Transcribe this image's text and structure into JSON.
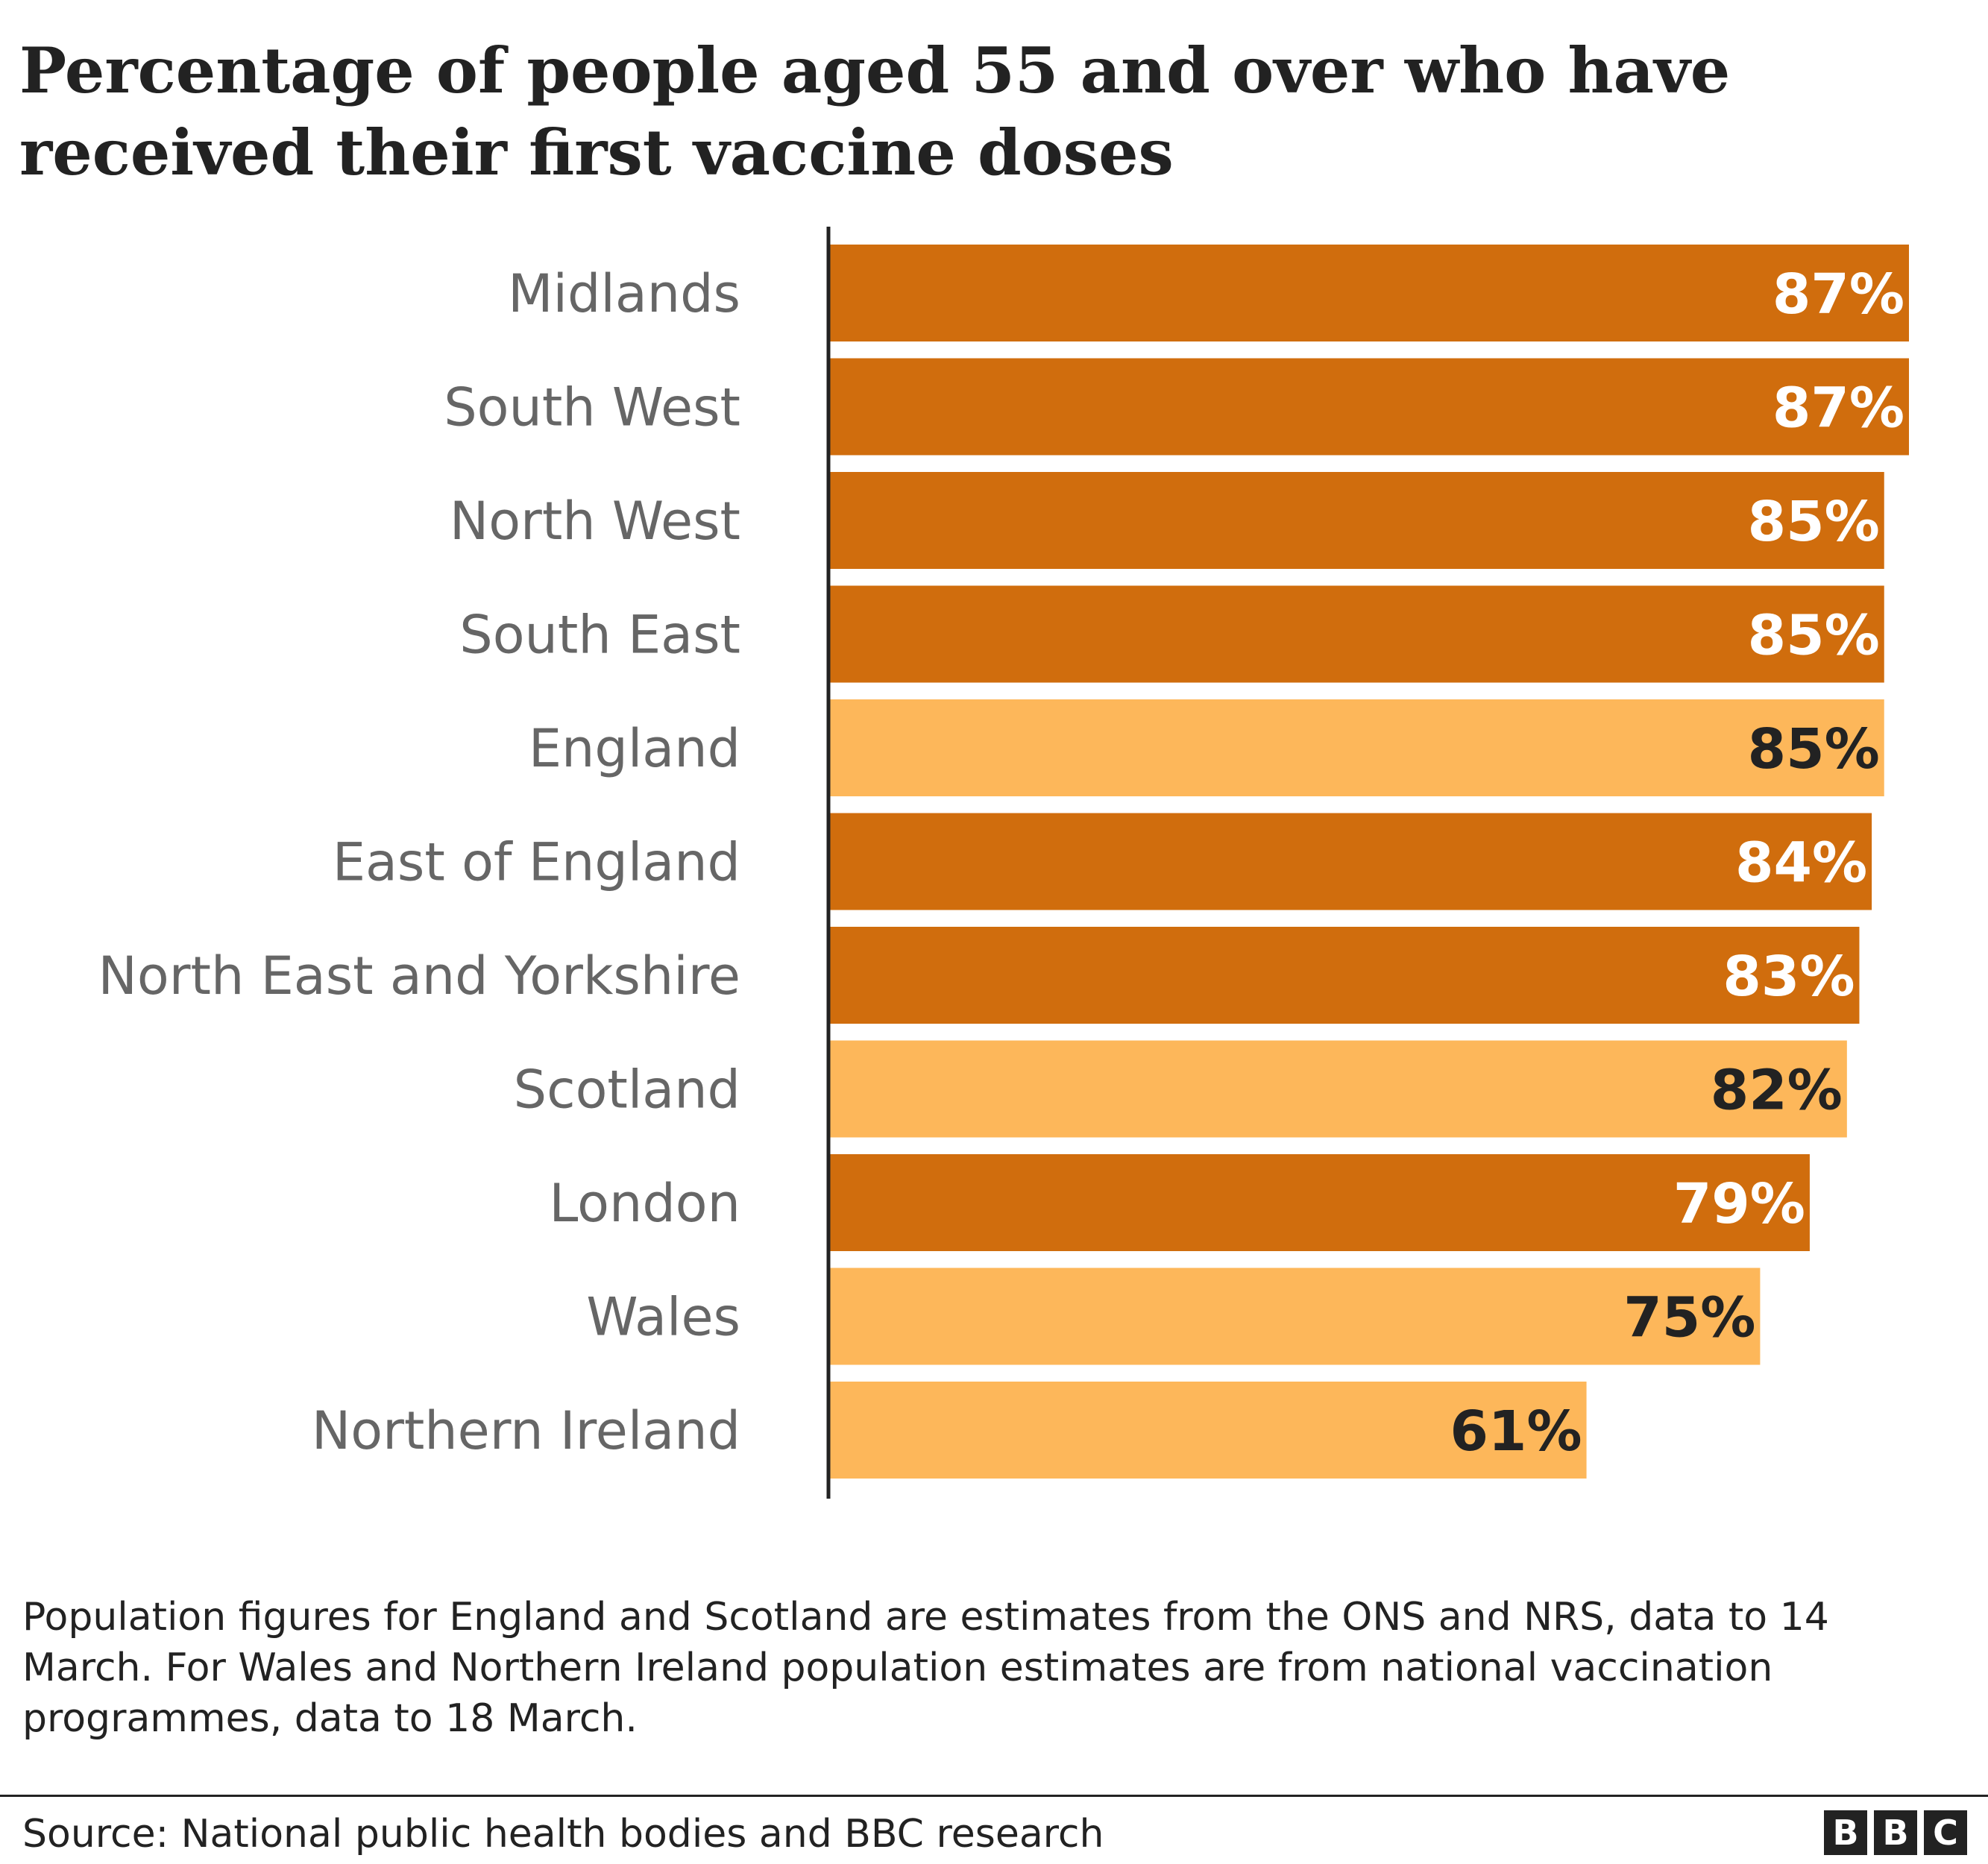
{
  "title": "Percentage of people aged 55 and over who have received their first vaccine doses",
  "chart_data": {
    "type": "bar",
    "orientation": "horizontal",
    "title": "Percentage of people aged 55 and over who have received their first vaccine doses",
    "categories": [
      "Midlands",
      "South West",
      "North West",
      "South East",
      "England",
      "East of England",
      "North East and Yorkshire",
      "Scotland",
      "London",
      "Wales",
      "Northern Ireland"
    ],
    "values": [
      87,
      87,
      85,
      85,
      85,
      84,
      83,
      82,
      79,
      75,
      61
    ],
    "value_labels": [
      "87%",
      "87%",
      "85%",
      "85%",
      "85%",
      "84%",
      "83%",
      "82%",
      "79%",
      "75%",
      "61%"
    ],
    "highlight": [
      false,
      false,
      false,
      false,
      true,
      false,
      false,
      true,
      false,
      true,
      true
    ],
    "xlim": [
      0,
      87
    ],
    "grid": false,
    "xlabel": "",
    "ylabel": ""
  },
  "colors": {
    "region_bar": "#d06d0d",
    "nation_bar": "#fdb75a",
    "region_label": "#ffffff",
    "nation_label": "#222222",
    "axis": "#222222",
    "category_text": "#666666"
  },
  "footnote": "Population figures for England and Scotland are estimates from the ONS and NRS, data to 14 March. For Wales and Northern Ireland population estimates are from national vaccination programmes, data to 18 March.",
  "source": "Source: National public health bodies and BBC research",
  "logo": {
    "letters": [
      "B",
      "B",
      "C"
    ]
  }
}
